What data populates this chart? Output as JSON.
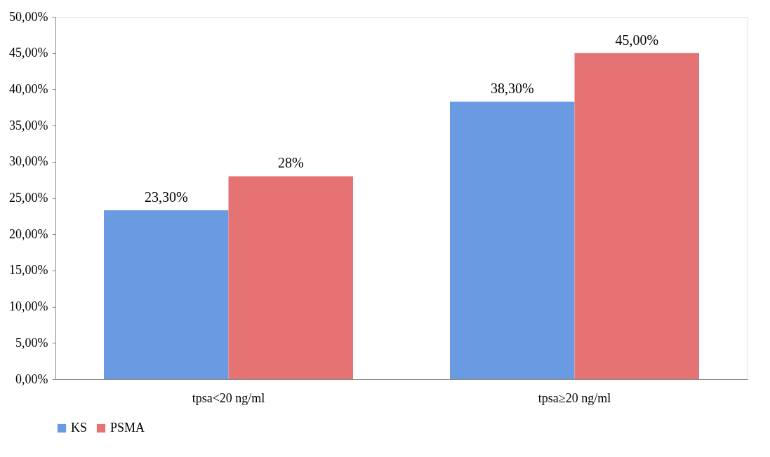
{
  "chart_data": {
    "type": "bar",
    "categories": [
      "tpsa<20 ng/ml",
      "tpsa≥20 ng/ml"
    ],
    "series": [
      {
        "name": "KS",
        "color": "#6a9be2",
        "values": [
          23.3,
          38.3
        ],
        "value_labels": [
          "23,30%",
          "38,30%"
        ]
      },
      {
        "name": "PSMA",
        "color": "#e57373",
        "values": [
          28,
          45
        ],
        "value_labels": [
          "28%",
          "45,00%"
        ]
      }
    ],
    "ylim": [
      0,
      50
    ],
    "yticks": [
      {
        "value": 0,
        "label": "0,00%"
      },
      {
        "value": 5,
        "label": "5,00%"
      },
      {
        "value": 10,
        "label": "10,00%"
      },
      {
        "value": 15,
        "label": "15,00%"
      },
      {
        "value": 20,
        "label": "20,00%"
      },
      {
        "value": 25,
        "label": "25,00%"
      },
      {
        "value": 30,
        "label": "30,00%"
      },
      {
        "value": 35,
        "label": "35,00%"
      },
      {
        "value": 40,
        "label": "40,00%"
      },
      {
        "value": 45,
        "label": "45,00%"
      },
      {
        "value": 50,
        "label": "50,00%"
      }
    ],
    "grid": false,
    "legend": "bottom"
  }
}
